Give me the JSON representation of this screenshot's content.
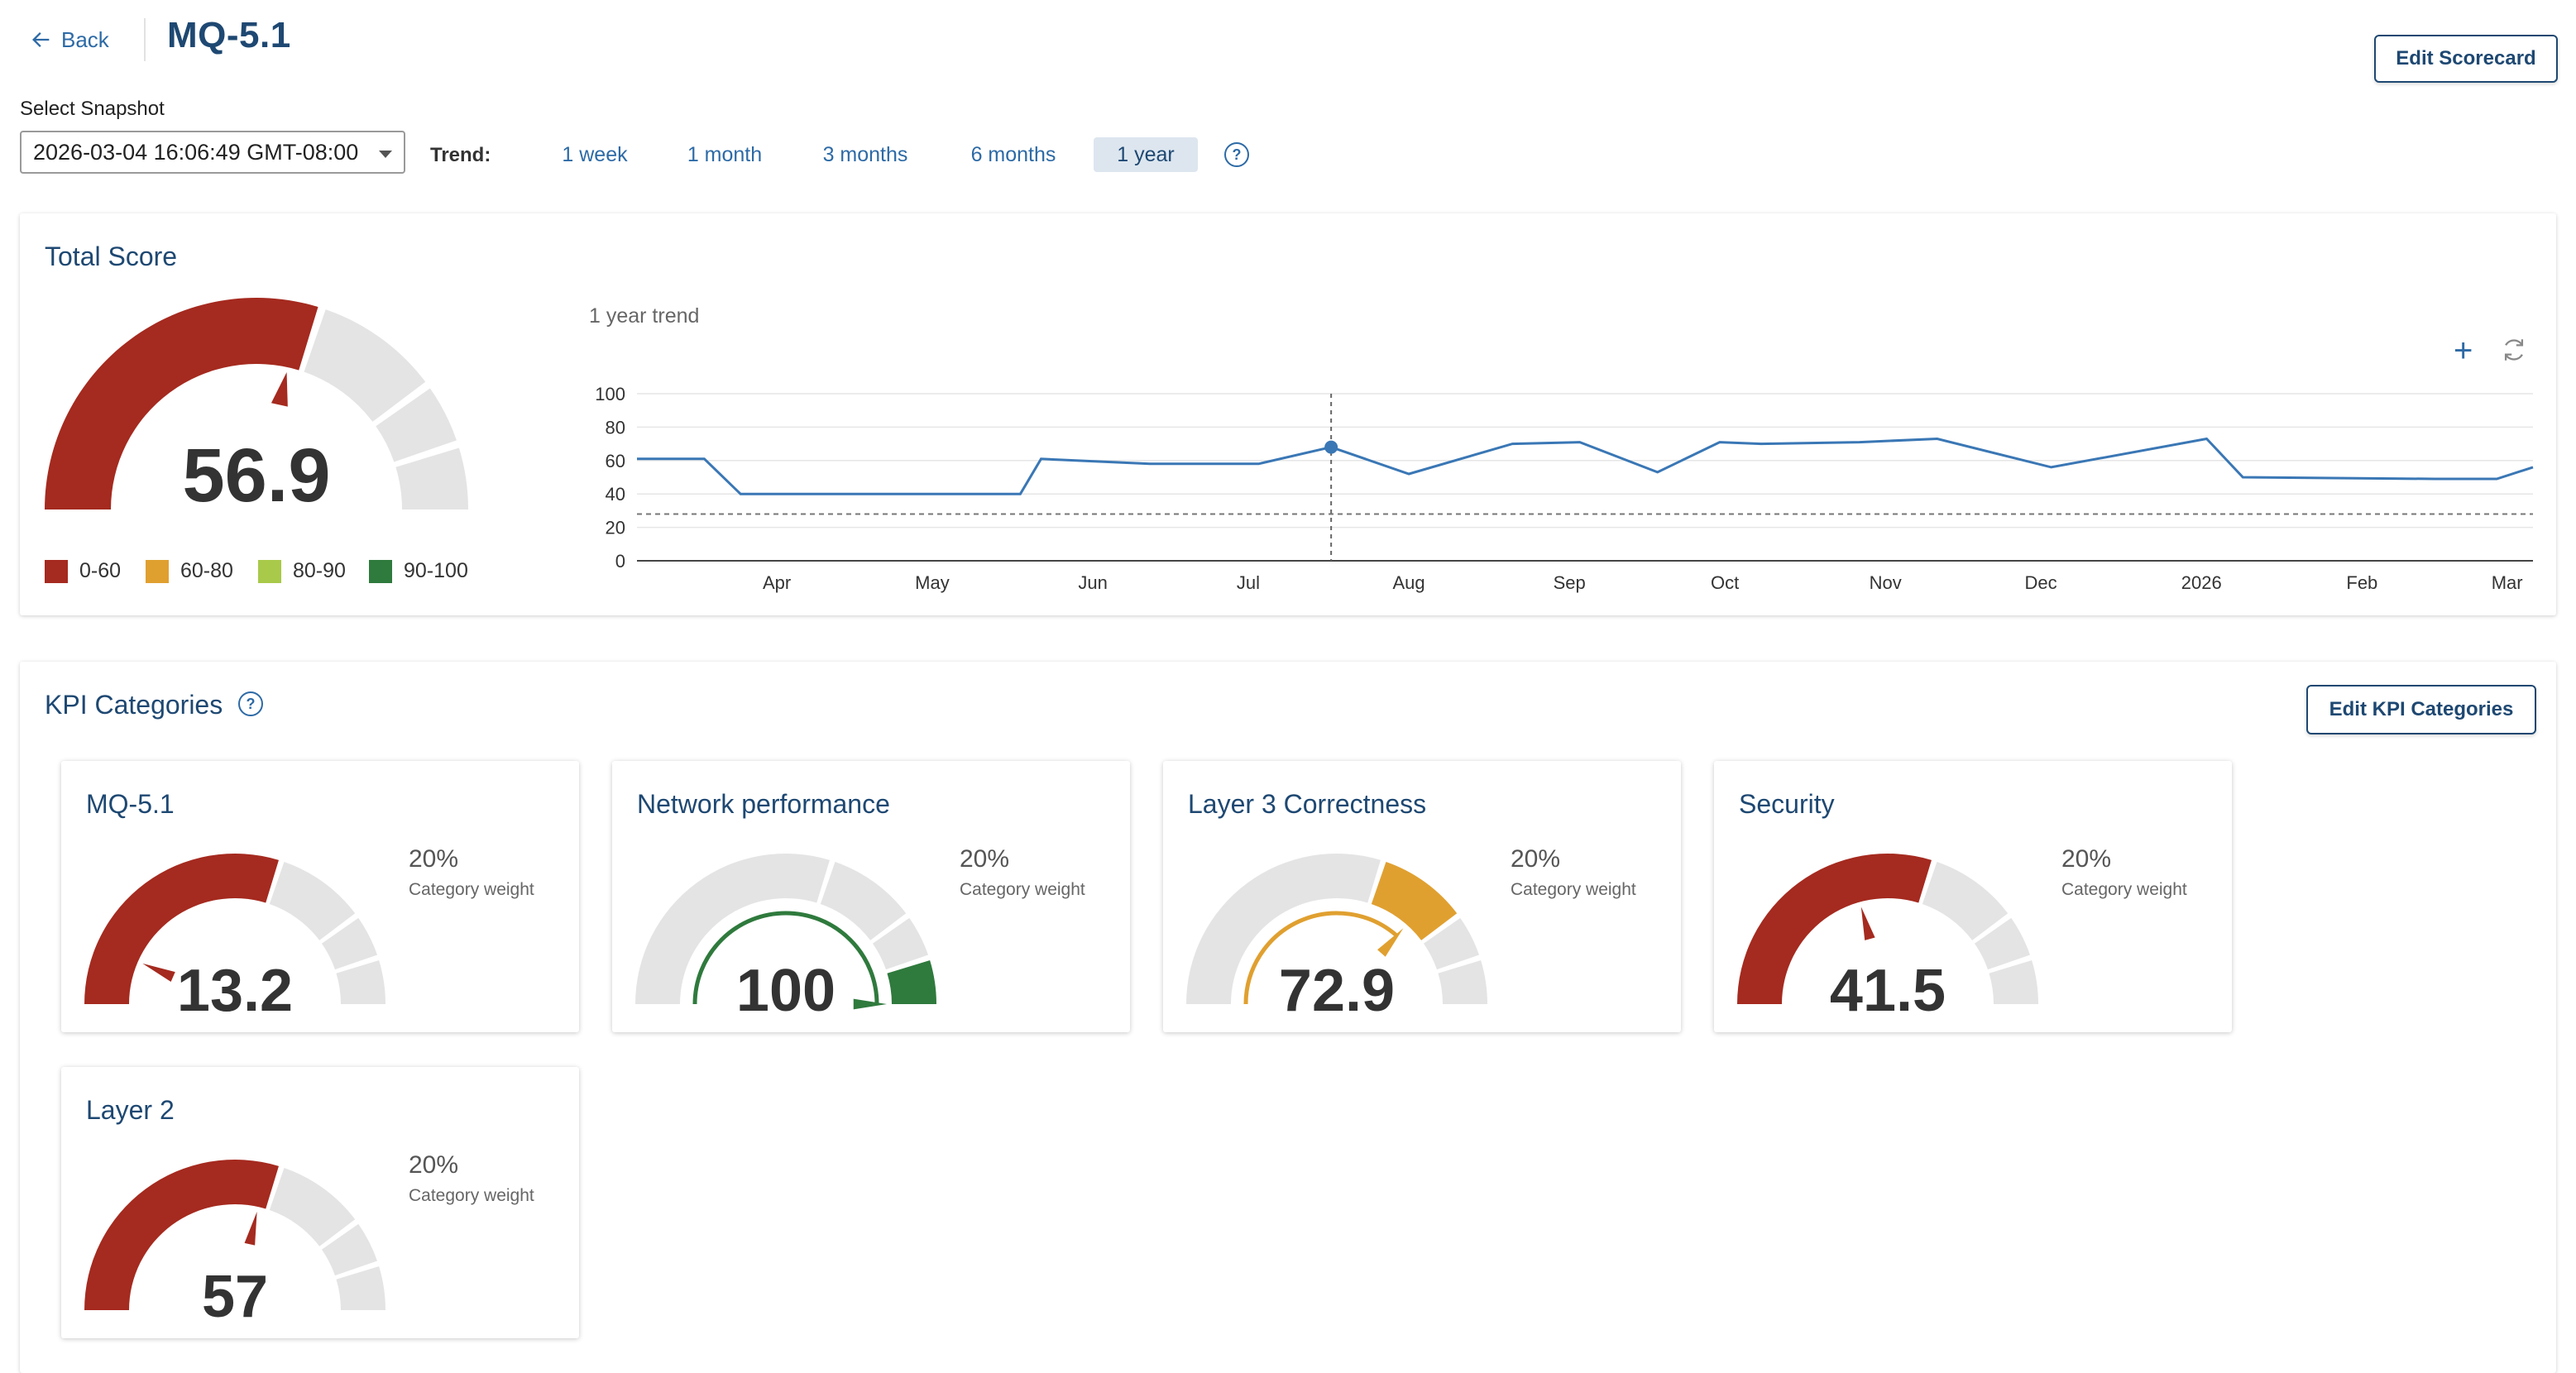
{
  "header": {
    "back_label": "Back",
    "title": "MQ-5.1",
    "edit_scorecard_label": "Edit Scorecard"
  },
  "snapshot": {
    "label": "Select Snapshot",
    "selected": "2026-03-04 16:06:49 GMT-08:00"
  },
  "trend": {
    "label": "Trend:",
    "options": [
      "1 week",
      "1 month",
      "3 months",
      "6 months",
      "1 year"
    ],
    "active": "1 year",
    "help_icon": "?"
  },
  "total_score": {
    "title": "Total Score",
    "value": "56.9",
    "legend": [
      {
        "label": "0-60",
        "color": "#a52a1f"
      },
      {
        "label": "60-80",
        "color": "#e0a030"
      },
      {
        "label": "80-90",
        "color": "#a8c94a"
      },
      {
        "label": "90-100",
        "color": "#2f7a3d"
      }
    ],
    "trend_caption": "1 year trend"
  },
  "chart_data": {
    "type": "line",
    "title": "1 year trend",
    "x_ticks": [
      "Apr",
      "May",
      "Jun",
      "Jul",
      "Aug",
      "Sep",
      "Oct",
      "Nov",
      "Dec",
      "2026",
      "Feb",
      "Mar"
    ],
    "y_ticks": [
      "0",
      "20",
      "40",
      "60",
      "80",
      "100"
    ],
    "ylim": [
      0,
      100
    ],
    "threshold": 28,
    "highlight_point": {
      "x": "2025-07-17",
      "y": 68
    },
    "series": [
      {
        "color": "#3a77b5",
        "points": [
          {
            "x": "2025-03-05",
            "y": 61
          },
          {
            "x": "2025-03-18",
            "y": 61
          },
          {
            "x": "2025-03-25",
            "y": 40
          },
          {
            "x": "2025-04-30",
            "y": 40
          },
          {
            "x": "2025-05-18",
            "y": 40
          },
          {
            "x": "2025-05-22",
            "y": 61
          },
          {
            "x": "2025-06-12",
            "y": 58
          },
          {
            "x": "2025-07-03",
            "y": 58
          },
          {
            "x": "2025-07-17",
            "y": 68
          },
          {
            "x": "2025-08-01",
            "y": 52
          },
          {
            "x": "2025-08-21",
            "y": 70
          },
          {
            "x": "2025-09-03",
            "y": 71
          },
          {
            "x": "2025-09-18",
            "y": 53
          },
          {
            "x": "2025-09-30",
            "y": 71
          },
          {
            "x": "2025-10-08",
            "y": 70
          },
          {
            "x": "2025-10-27",
            "y": 71
          },
          {
            "x": "2025-11-11",
            "y": 73
          },
          {
            "x": "2025-12-03",
            "y": 56
          },
          {
            "x": "2026-01-02",
            "y": 73
          },
          {
            "x": "2026-01-09",
            "y": 50
          },
          {
            "x": "2026-02-15",
            "y": 49
          },
          {
            "x": "2026-02-27",
            "y": 49
          },
          {
            "x": "2026-03-06",
            "y": 56
          }
        ]
      }
    ]
  },
  "kpi": {
    "title": "KPI Categories",
    "help_icon": "?",
    "edit_label": "Edit KPI Categories",
    "weight_label": "Category weight",
    "cards": [
      {
        "title": "MQ-5.1",
        "value": "13.2",
        "score": 13.2,
        "weight": "20%",
        "color": "#a52a1f"
      },
      {
        "title": "Network performance",
        "value": "100",
        "score": 100,
        "weight": "20%",
        "color": "#2f7a3d"
      },
      {
        "title": "Layer 3 Correctness",
        "value": "72.9",
        "score": 72.9,
        "weight": "20%",
        "color": "#e0a030"
      },
      {
        "title": "Security",
        "value": "41.5",
        "score": 41.5,
        "weight": "20%",
        "color": "#a52a1f"
      },
      {
        "title": "Layer 2",
        "value": "57",
        "score": 57,
        "weight": "20%",
        "color": "#a52a1f"
      }
    ]
  }
}
